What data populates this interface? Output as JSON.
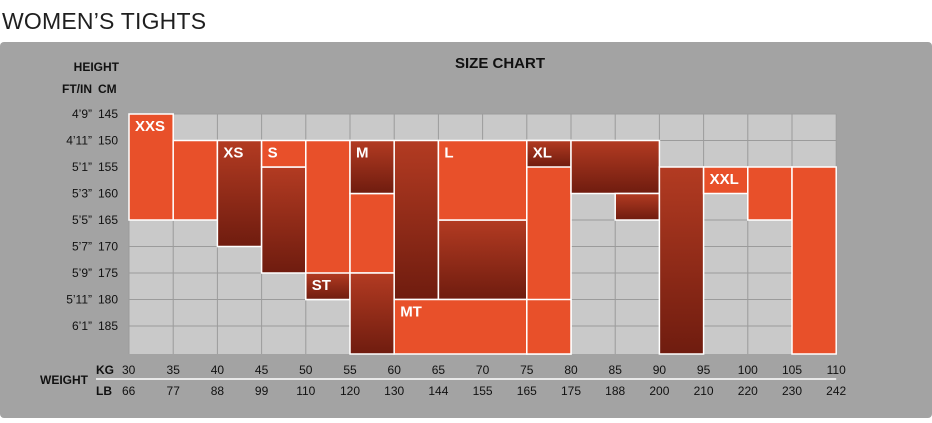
{
  "page_title": "WOMEN’S TIGHTS",
  "chart_data": {
    "type": "heatmap",
    "title": "SIZE CHART",
    "height_axis": {
      "label": "HEIGHT",
      "ft_in_header": "FT/IN",
      "cm_header": "CM",
      "ft_in": [
        "4’9”",
        "4’11”",
        "5’1”",
        "5’3”",
        "5’5”",
        "5’7”",
        "5’9”",
        "5’11”",
        "6’1”"
      ],
      "cm": [
        145,
        150,
        155,
        160,
        165,
        170,
        175,
        180,
        185
      ]
    },
    "weight_axis": {
      "label": "WEIGHT",
      "kg_header": "KG",
      "lb_header": "LB",
      "kg": [
        30,
        35,
        40,
        45,
        50,
        55,
        60,
        65,
        70,
        75,
        80,
        85,
        90,
        95,
        100,
        105,
        110
      ],
      "lb": [
        66,
        77,
        88,
        99,
        110,
        120,
        130,
        144,
        155,
        165,
        175,
        188,
        200,
        210,
        220,
        230,
        242
      ]
    },
    "sizes": [
      {
        "name": "XXS",
        "style": "light",
        "regions": [
          {
            "kg": [
              30,
              35
            ],
            "cm": [
              145,
              165
            ]
          },
          {
            "kg": [
              35,
              40
            ],
            "cm": [
              150,
              165
            ]
          }
        ]
      },
      {
        "name": "XS",
        "style": "dark",
        "regions": [
          {
            "kg": [
              40,
              45
            ],
            "cm": [
              150,
              170
            ]
          },
          {
            "kg": [
              45,
              50
            ],
            "cm": [
              155,
              175
            ]
          }
        ]
      },
      {
        "name": "S",
        "style": "light",
        "regions": [
          {
            "kg": [
              45,
              50
            ],
            "cm": [
              150,
              155
            ]
          },
          {
            "kg": [
              50,
              55
            ],
            "cm": [
              150,
              180
            ]
          },
          {
            "kg": [
              55,
              60
            ],
            "cm": [
              160,
              175
            ]
          }
        ]
      },
      {
        "name": "ST",
        "style": "dark",
        "regions": [
          {
            "kg": [
              50,
              55
            ],
            "cm": [
              175,
              180
            ]
          },
          {
            "kg": [
              55,
              60
            ],
            "cm": [
              175,
              185
            ]
          }
        ]
      },
      {
        "name": "M",
        "style": "dark",
        "regions": [
          {
            "kg": [
              55,
              60
            ],
            "cm": [
              150,
              160
            ]
          },
          {
            "kg": [
              60,
              65
            ],
            "cm": [
              150,
              180
            ]
          },
          {
            "kg": [
              65,
              75
            ],
            "cm": [
              165,
              180
            ]
          }
        ]
      },
      {
        "name": "L",
        "style": "light",
        "regions": [
          {
            "kg": [
              65,
              75
            ],
            "cm": [
              150,
              165
            ]
          },
          {
            "kg": [
              75,
              80
            ],
            "cm": [
              150,
              185
            ]
          }
        ]
      },
      {
        "name": "MT",
        "style": "light",
        "regions": [
          {
            "kg": [
              60,
              75
            ],
            "cm": [
              180,
              185
            ]
          },
          {
            "kg": [
              75,
              80
            ],
            "cm": [
              180,
              185
            ]
          }
        ]
      },
      {
        "name": "XL",
        "style": "dark",
        "regions": [
          {
            "kg": [
              75,
              80
            ],
            "cm": [
              150,
              155
            ]
          },
          {
            "kg": [
              80,
              90
            ],
            "cm": [
              150,
              160
            ]
          },
          {
            "kg": [
              85,
              90
            ],
            "cm": [
              160,
              165
            ]
          },
          {
            "kg": [
              90,
              95
            ],
            "cm": [
              155,
              185
            ]
          }
        ]
      },
      {
        "name": "XXL",
        "style": "light",
        "regions": [
          {
            "kg": [
              95,
              100
            ],
            "cm": [
              155,
              160
            ]
          },
          {
            "kg": [
              100,
              105
            ],
            "cm": [
              155,
              165
            ]
          },
          {
            "kg": [
              105,
              110
            ],
            "cm": [
              155,
              185
            ]
          }
        ]
      }
    ],
    "grid": true,
    "colors": {
      "light": "#e8502a",
      "dark_top": "#b23a22",
      "dark_bottom": "#7a2012",
      "panel": "#a3a3a3",
      "plot_area": "#c9c9c9",
      "border": "#ffffff"
    }
  }
}
